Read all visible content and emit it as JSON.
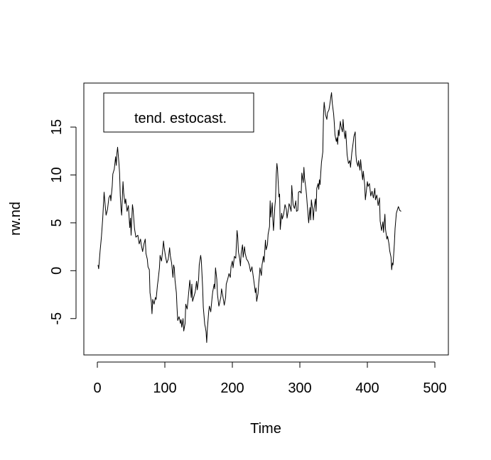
{
  "chart_data": {
    "type": "line",
    "title": "",
    "xlabel": "Time",
    "ylabel": "rw.nd",
    "xlim": [
      -20,
      520
    ],
    "ylim": [
      -8.8,
      19.6
    ],
    "x_ticks": [
      0,
      100,
      200,
      300,
      400,
      500
    ],
    "y_ticks": [
      -5,
      0,
      5,
      10,
      15
    ],
    "x_tick_labels": [
      "0",
      "100",
      "200",
      "300",
      "400",
      "500"
    ],
    "y_tick_labels": [
      "-5",
      "0",
      "5",
      "10",
      "15"
    ],
    "grid": false,
    "legend": {
      "position": "top-left",
      "entries": [
        "tend. estocast."
      ]
    },
    "series": [
      {
        "name": "tend. estocast.",
        "color": "#000000",
        "points": [
          [
            1,
            0.6
          ],
          [
            2,
            0.2
          ],
          [
            4,
            2.0
          ],
          [
            6,
            3.5
          ],
          [
            8,
            5.5
          ],
          [
            10,
            8.2
          ],
          [
            12,
            6.5
          ],
          [
            13,
            5.8
          ],
          [
            15,
            6.4
          ],
          [
            17,
            7.6
          ],
          [
            19,
            7.9
          ],
          [
            20,
            7.3
          ],
          [
            22,
            8.8
          ],
          [
            23,
            10.1
          ],
          [
            25,
            10.6
          ],
          [
            27,
            11.9
          ],
          [
            28,
            11.0
          ],
          [
            29,
            12.3
          ],
          [
            30,
            12.9
          ],
          [
            31,
            12.1
          ],
          [
            32,
            11.2
          ],
          [
            33,
            10.2
          ],
          [
            34,
            7.8
          ],
          [
            35,
            6.5
          ],
          [
            36,
            5.8
          ],
          [
            38,
            9.3
          ],
          [
            39,
            8.1
          ],
          [
            41,
            7.0
          ],
          [
            42,
            7.5
          ],
          [
            44,
            6.2
          ],
          [
            46,
            6.8
          ],
          [
            48,
            4.5
          ],
          [
            49,
            5.5
          ],
          [
            50,
            3.7
          ],
          [
            52,
            6.9
          ],
          [
            53,
            6.4
          ],
          [
            55,
            4.4
          ],
          [
            57,
            3.5
          ],
          [
            60,
            3.7
          ],
          [
            62,
            2.8
          ],
          [
            64,
            3.3
          ],
          [
            65,
            2.7
          ],
          [
            67,
            2.0
          ],
          [
            69,
            2.8
          ],
          [
            71,
            3.3
          ],
          [
            72,
            1.8
          ],
          [
            74,
            1.2
          ],
          [
            75,
            0.4
          ],
          [
            77,
            0.1
          ],
          [
            78,
            -2.3
          ],
          [
            80,
            -3.3
          ],
          [
            81,
            -4.5
          ],
          [
            82,
            -3.0
          ],
          [
            84,
            -3.5
          ],
          [
            86,
            -2.8
          ],
          [
            87,
            -3.0
          ],
          [
            89,
            -1.5
          ],
          [
            90,
            -1.0
          ],
          [
            92,
            0.3
          ],
          [
            93,
            1.6
          ],
          [
            95,
            1.0
          ],
          [
            97,
            2.3
          ],
          [
            98,
            3.1
          ],
          [
            99,
            2.4
          ],
          [
            101,
            1.5
          ],
          [
            103,
            0.8
          ],
          [
            105,
            1.2
          ],
          [
            107,
            2.4
          ],
          [
            108,
            1.6
          ],
          [
            110,
            0.8
          ],
          [
            112,
            -0.7
          ],
          [
            113,
            0.6
          ],
          [
            114,
            0.3
          ],
          [
            115,
            -1.0
          ],
          [
            117,
            -2.3
          ],
          [
            118,
            -3.8
          ],
          [
            119,
            -5.2
          ],
          [
            121,
            -4.8
          ],
          [
            123,
            -5.5
          ],
          [
            124,
            -5.1
          ],
          [
            125,
            -5.9
          ],
          [
            127,
            -5.0
          ],
          [
            128,
            -6.3
          ],
          [
            130,
            -5.5
          ],
          [
            131,
            -3.5
          ],
          [
            133,
            -4.0
          ],
          [
            134,
            -3.3
          ],
          [
            135,
            -2.5
          ],
          [
            137,
            -1.0
          ],
          [
            139,
            -2.8
          ],
          [
            140,
            -1.4
          ],
          [
            141,
            -3.2
          ],
          [
            143,
            -2.7
          ],
          [
            145,
            -2.2
          ],
          [
            147,
            -1.1
          ],
          [
            148,
            -2.0
          ],
          [
            150,
            -0.9
          ],
          [
            151,
            0.6
          ],
          [
            153,
            1.6
          ],
          [
            154,
            1.1
          ],
          [
            156,
            -1.8
          ],
          [
            157,
            -3.8
          ],
          [
            159,
            -5.6
          ],
          [
            160,
            -5.9
          ],
          [
            161,
            -6.4
          ],
          [
            162,
            -7.5
          ],
          [
            163,
            -6.0
          ],
          [
            165,
            -4.2
          ],
          [
            166,
            -3.7
          ],
          [
            168,
            -4.3
          ],
          [
            170,
            -2.8
          ],
          [
            171,
            -2.2
          ],
          [
            173,
            -1.4
          ],
          [
            174,
            -1.9
          ],
          [
            175,
            0.3
          ],
          [
            177,
            -0.9
          ],
          [
            178,
            -2.5
          ],
          [
            180,
            -3.7
          ],
          [
            181,
            -3.4
          ],
          [
            183,
            -2.7
          ],
          [
            184,
            -1.9
          ],
          [
            186,
            -2.7
          ],
          [
            188,
            -3.6
          ],
          [
            190,
            -2.8
          ],
          [
            191,
            -1.4
          ],
          [
            193,
            -0.9
          ],
          [
            195,
            -0.3
          ],
          [
            197,
            -0.7
          ],
          [
            198,
            0.4
          ],
          [
            200,
            1.0
          ],
          [
            201,
            0.3
          ],
          [
            203,
            1.5
          ],
          [
            205,
            1.3
          ],
          [
            207,
            4.2
          ],
          [
            208,
            3.5
          ],
          [
            209,
            2.0
          ],
          [
            211,
            1.2
          ],
          [
            212,
            0.5
          ],
          [
            213,
            1.8
          ],
          [
            215,
            2.7
          ],
          [
            216,
            1.4
          ],
          [
            218,
            2.5
          ],
          [
            219,
            1.8
          ],
          [
            221,
            1.2
          ],
          [
            223,
            1.0
          ],
          [
            225,
            0.6
          ],
          [
            227,
            -0.1
          ],
          [
            229,
            0.4
          ],
          [
            231,
            -0.6
          ],
          [
            233,
            -1.7
          ],
          [
            234,
            -2.3
          ],
          [
            235,
            -1.8
          ],
          [
            236,
            -3.2
          ],
          [
            238,
            -2.4
          ],
          [
            239,
            -1.3
          ],
          [
            240,
            -0.6
          ],
          [
            241,
            0.3
          ],
          [
            243,
            -0.5
          ],
          [
            244,
            0.6
          ],
          [
            246,
            1.5
          ],
          [
            247,
            0.9
          ],
          [
            249,
            3.2
          ],
          [
            250,
            2.2
          ],
          [
            252,
            2.7
          ],
          [
            253,
            3.8
          ],
          [
            255,
            4.6
          ],
          [
            256,
            7.3
          ],
          [
            257,
            5.6
          ],
          [
            259,
            7.1
          ],
          [
            260,
            5.3
          ],
          [
            261,
            4.2
          ],
          [
            263,
            6.7
          ],
          [
            264,
            7.5
          ],
          [
            265,
            10.1
          ],
          [
            266,
            11.2
          ],
          [
            267,
            10.6
          ],
          [
            268,
            9.1
          ],
          [
            269,
            7.7
          ],
          [
            270,
            8.0
          ],
          [
            271,
            4.3
          ],
          [
            273,
            6.0
          ],
          [
            274,
            5.4
          ],
          [
            276,
            5.9
          ],
          [
            278,
            6.9
          ],
          [
            280,
            6.4
          ],
          [
            281,
            5.5
          ],
          [
            283,
            6.4
          ],
          [
            284,
            7.0
          ],
          [
            285,
            6.8
          ],
          [
            287,
            6.2
          ],
          [
            288,
            8.9
          ],
          [
            290,
            6.9
          ],
          [
            292,
            6.5
          ],
          [
            294,
            7.3
          ],
          [
            295,
            6.2
          ],
          [
            297,
            6.3
          ],
          [
            298,
            8.2
          ],
          [
            300,
            8.3
          ],
          [
            302,
            8.1
          ],
          [
            303,
            10.2
          ],
          [
            305,
            9.2
          ],
          [
            306,
            10.8
          ],
          [
            307,
            9.7
          ],
          [
            309,
            8.5
          ],
          [
            310,
            7.8
          ],
          [
            311,
            6.9
          ],
          [
            312,
            6.0
          ],
          [
            313,
            5.0
          ],
          [
            315,
            6.6
          ],
          [
            316,
            5.3
          ],
          [
            317,
            7.4
          ],
          [
            319,
            6.3
          ],
          [
            320,
            5.3
          ],
          [
            321,
            6.5
          ],
          [
            323,
            7.5
          ],
          [
            324,
            6.2
          ],
          [
            325,
            8.6
          ],
          [
            327,
            9.1
          ],
          [
            328,
            8.5
          ],
          [
            329,
            9.5
          ],
          [
            330,
            9.0
          ],
          [
            331,
            10.2
          ],
          [
            332,
            11.3
          ],
          [
            334,
            12.4
          ],
          [
            335,
            16.4
          ],
          [
            336,
            17.6
          ],
          [
            338,
            16.3
          ],
          [
            340,
            15.8
          ],
          [
            341,
            16.5
          ],
          [
            343,
            16.8
          ],
          [
            344,
            17.2
          ],
          [
            345,
            17.7
          ],
          [
            346,
            18.2
          ],
          [
            347,
            18.6
          ],
          [
            348,
            17.5
          ],
          [
            350,
            16.4
          ],
          [
            351,
            15.5
          ],
          [
            352,
            14.2
          ],
          [
            354,
            13.5
          ],
          [
            355,
            13.9
          ],
          [
            356,
            13.2
          ],
          [
            357,
            14.7
          ],
          [
            358,
            14.1
          ],
          [
            360,
            15.6
          ],
          [
            361,
            15.1
          ],
          [
            363,
            14.5
          ],
          [
            364,
            15.8
          ],
          [
            365,
            14.8
          ],
          [
            367,
            13.8
          ],
          [
            368,
            14.6
          ],
          [
            370,
            12.1
          ],
          [
            372,
            11.2
          ],
          [
            374,
            11.5
          ],
          [
            375,
            10.8
          ],
          [
            377,
            12.3
          ],
          [
            379,
            13.4
          ],
          [
            380,
            14.0
          ],
          [
            382,
            14.5
          ],
          [
            383,
            12.1
          ],
          [
            384,
            11.4
          ],
          [
            386,
            10.9
          ],
          [
            387,
            11.5
          ],
          [
            389,
            10.5
          ],
          [
            390,
            11.6
          ],
          [
            392,
            10.1
          ],
          [
            393,
            9.5
          ],
          [
            394,
            10.4
          ],
          [
            396,
            9.0
          ],
          [
            397,
            7.4
          ],
          [
            398,
            8.0
          ],
          [
            400,
            9.3
          ],
          [
            401,
            8.8
          ],
          [
            403,
            9.1
          ],
          [
            405,
            7.8
          ],
          [
            407,
            8.3
          ],
          [
            409,
            7.6
          ],
          [
            411,
            8.6
          ],
          [
            412,
            7.4
          ],
          [
            414,
            7.9
          ],
          [
            416,
            6.8
          ],
          [
            418,
            7.6
          ],
          [
            419,
            5.2
          ],
          [
            421,
            4.2
          ],
          [
            423,
            5.1
          ],
          [
            424,
            4.0
          ],
          [
            426,
            5.9
          ],
          [
            427,
            4.3
          ],
          [
            429,
            3.3
          ],
          [
            430,
            3.6
          ],
          [
            432,
            2.8
          ],
          [
            433,
            2.1
          ],
          [
            435,
            1.4
          ],
          [
            436,
            0.1
          ],
          [
            437,
            0.8
          ],
          [
            438,
            0.6
          ],
          [
            440,
            2.8
          ],
          [
            441,
            4.4
          ],
          [
            443,
            6.0
          ],
          [
            445,
            6.5
          ],
          [
            446,
            6.7
          ],
          [
            448,
            6.3
          ],
          [
            450,
            6.2
          ]
        ]
      }
    ]
  }
}
